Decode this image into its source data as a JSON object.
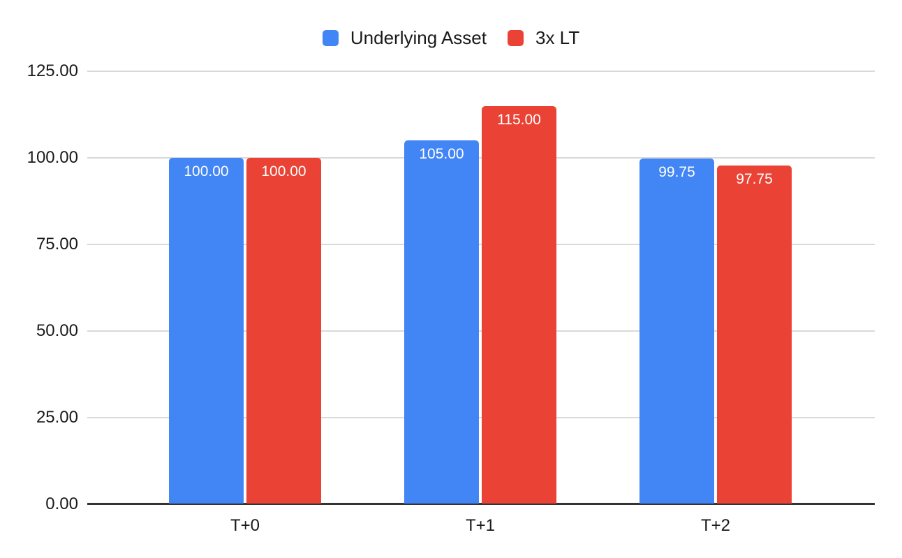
{
  "chart_data": {
    "type": "bar",
    "title": "",
    "xlabel": "",
    "ylabel": "",
    "categories": [
      "T+0",
      "T+1",
      "T+2"
    ],
    "series": [
      {
        "name": "Underlying Asset",
        "color": "#4285F4",
        "values": [
          100.0,
          105.0,
          99.75
        ],
        "labels": [
          "100.00",
          "105.00",
          "99.75"
        ]
      },
      {
        "name": "3x LT",
        "color": "#EA4335",
        "values": [
          100.0,
          115.0,
          97.75
        ],
        "labels": [
          "100.00",
          "115.00",
          "97.75"
        ]
      }
    ],
    "ylim": [
      0,
      125
    ],
    "yticks": [
      0,
      25,
      50,
      75,
      100,
      125
    ],
    "ytick_labels": [
      "0.00",
      "25.00",
      "50.00",
      "75.00",
      "100.00",
      "125.00"
    ],
    "grid": true,
    "legend_position": "top",
    "bar_label_position": "inside-top"
  },
  "colors": {
    "background": "#FFFFFF",
    "gridline": "#D9D9D9",
    "axis_line": "#333333",
    "axis_text": "#1A1A1A",
    "legend_text": "#1A1A1A",
    "bar_label_text": "#FFFFFF"
  }
}
